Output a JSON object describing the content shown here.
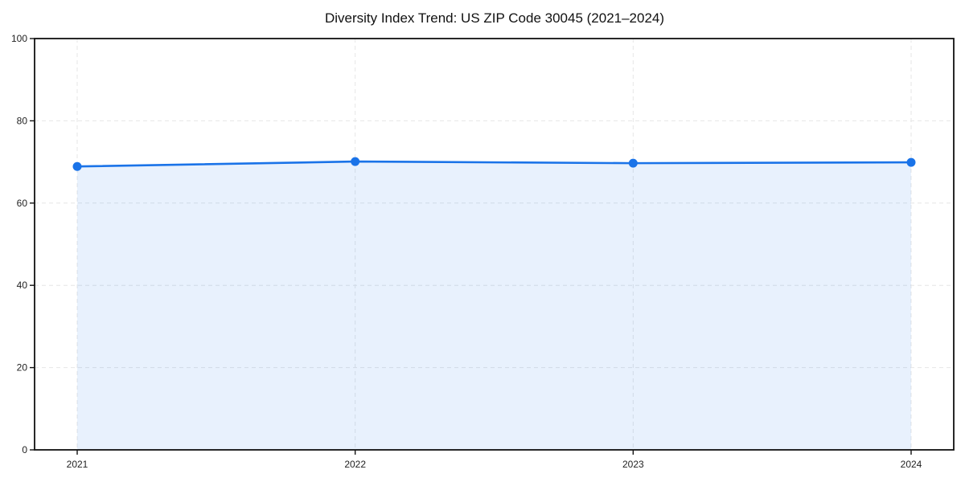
{
  "chart_data": {
    "type": "area",
    "title": "Diversity Index Trend: US ZIP Code 30045 (2021–2024)",
    "x": [
      "2021",
      "2022",
      "2023",
      "2024"
    ],
    "series": [
      {
        "name": "Diversity Index",
        "values": [
          68.9,
          70.1,
          69.7,
          69.9
        ]
      }
    ],
    "xlabel": "",
    "ylabel": "",
    "ylim": [
      0,
      100
    ],
    "y_ticks": [
      0,
      20,
      40,
      60,
      80,
      100
    ],
    "grid": true,
    "grid_style": "dashed",
    "legend": false,
    "markers": true,
    "colors": {
      "line": "#1a73e8",
      "marker": "#1a73e8",
      "fill": "rgba(26,115,232,0.10)",
      "grid": "#e6e6e6",
      "spine": "#111111",
      "tick_label": "#222222",
      "title": "#111111",
      "background": "#ffffff"
    }
  }
}
